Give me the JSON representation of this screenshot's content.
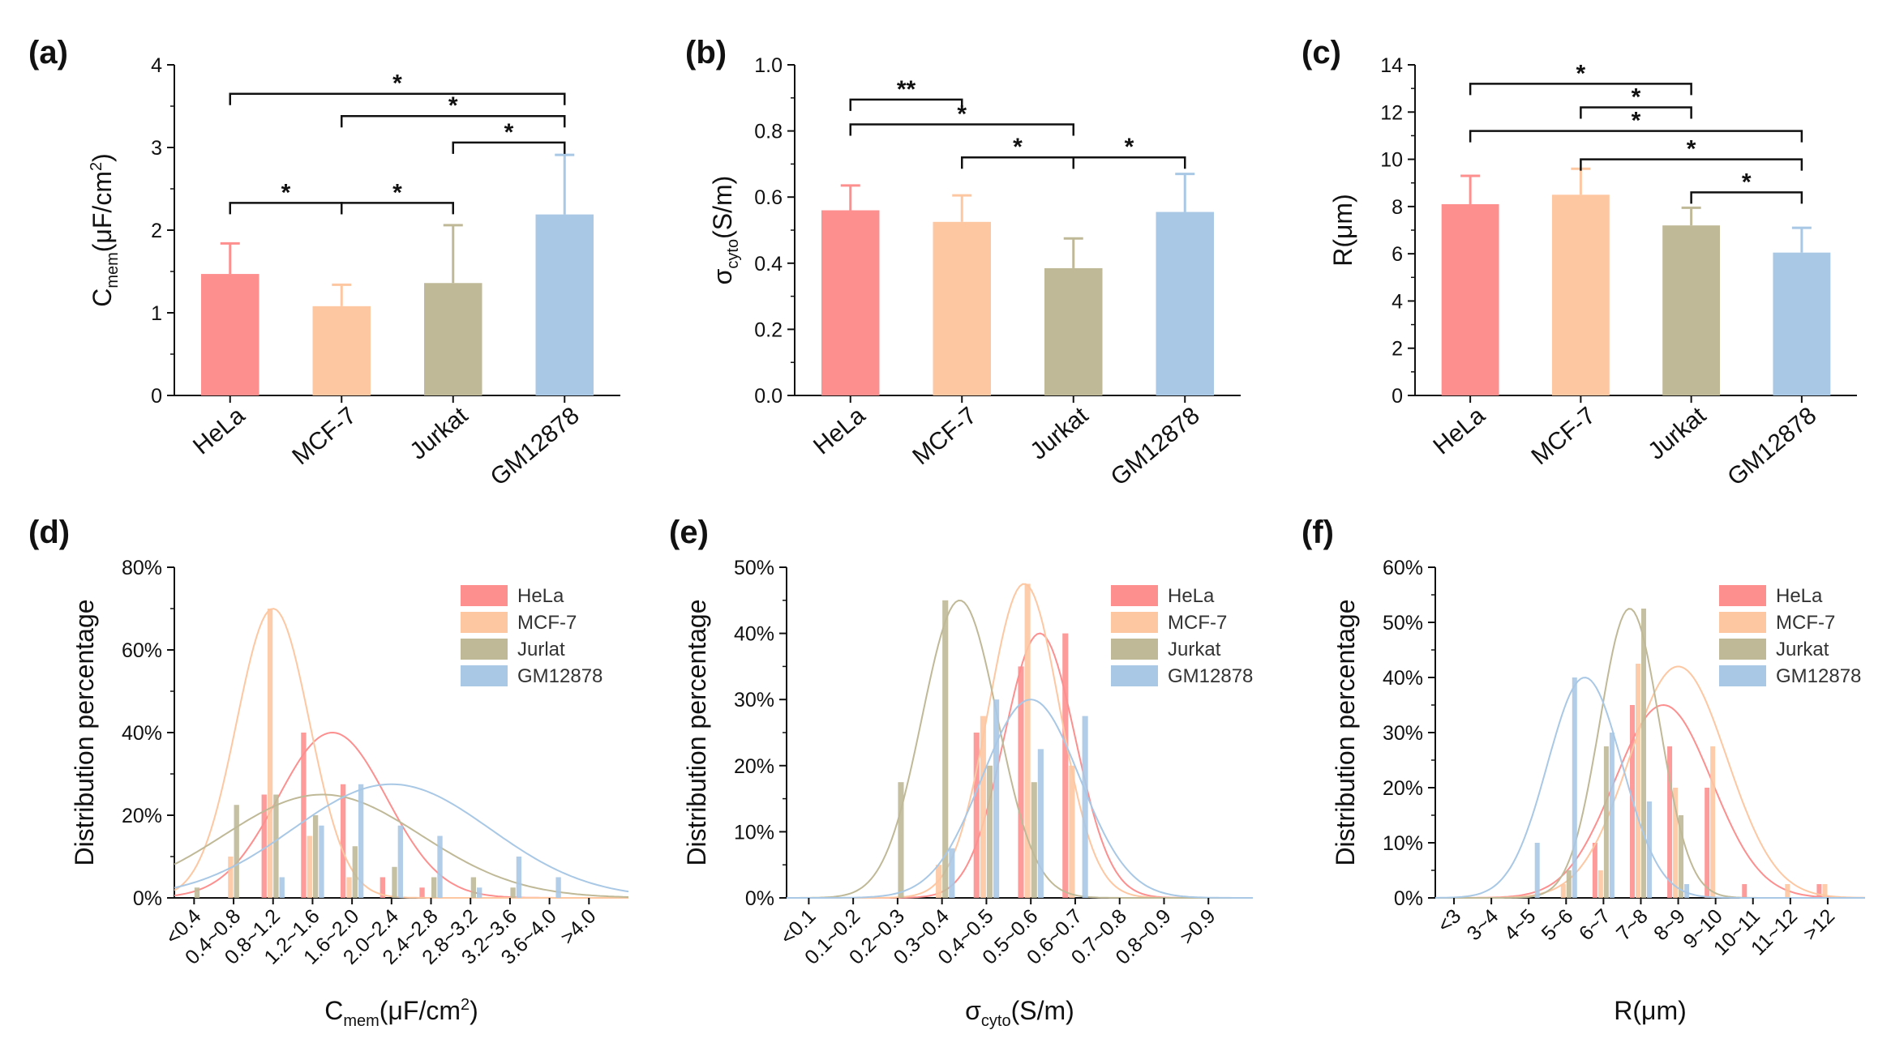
{
  "colors": {
    "HeLa": "#fd8f8f",
    "MCF-7": "#fdc7a2",
    "Jurkat": "#bfb997",
    "GM12878": "#a8c8e5",
    "axis": "#111111"
  },
  "chart_data": [
    {
      "id": "a",
      "panel_label": "(a)",
      "type": "bar",
      "categories": [
        "HeLa",
        "MCF-7",
        "Jurkat",
        "GM12878"
      ],
      "values": [
        1.47,
        1.08,
        1.36,
        2.19
      ],
      "errors": [
        0.37,
        0.26,
        0.7,
        0.72
      ],
      "ylabel": {
        "main": "C",
        "sub": "mem",
        "rest": "(μF/cm",
        "sup": "2",
        "end": ")"
      },
      "ylim": [
        0,
        4
      ],
      "yticks": [
        "0",
        "1",
        "2",
        "3",
        "4"
      ],
      "significance": [
        {
          "from": 0,
          "to": 3,
          "y": 3.65,
          "label": "*"
        },
        {
          "from": 1,
          "to": 3,
          "y": 3.38,
          "label": "*"
        },
        {
          "from": 2,
          "to": 3,
          "y": 3.06,
          "label": "*"
        },
        {
          "from": 0,
          "to": 1,
          "y": 2.33,
          "label": "*"
        },
        {
          "from": 1,
          "to": 2,
          "y": 2.33,
          "label": "*"
        }
      ]
    },
    {
      "id": "b",
      "panel_label": "(b)",
      "type": "bar",
      "categories": [
        "HeLa",
        "MCF-7",
        "Jurkat",
        "GM12878"
      ],
      "values": [
        0.56,
        0.525,
        0.385,
        0.555
      ],
      "errors": [
        0.075,
        0.08,
        0.09,
        0.115
      ],
      "ylabel": {
        "main": "σ",
        "sub": "cyto",
        "rest": "(S/m)",
        "sup": "",
        "end": ""
      },
      "ylim": [
        0,
        1
      ],
      "yticks": [
        "0.0",
        "0.2",
        "0.4",
        "0.6",
        "0.8",
        "1.0"
      ],
      "significance": [
        {
          "from": 0,
          "to": 1,
          "y": 0.895,
          "label": "**"
        },
        {
          "from": 0,
          "to": 2,
          "y": 0.82,
          "label": "*"
        },
        {
          "from": 1,
          "to": 2,
          "y": 0.72,
          "label": "*"
        },
        {
          "from": 2,
          "to": 3,
          "y": 0.72,
          "label": "*"
        }
      ]
    },
    {
      "id": "c",
      "panel_label": "(c)",
      "type": "bar",
      "categories": [
        "HeLa",
        "MCF-7",
        "Jurkat",
        "GM12878"
      ],
      "values": [
        8.1,
        8.5,
        7.2,
        6.05
      ],
      "errors": [
        1.2,
        1.1,
        0.75,
        1.05
      ],
      "ylabel": {
        "main": "R(μm)",
        "sub": "",
        "rest": "",
        "sup": "",
        "end": ""
      },
      "ylim": [
        0,
        14
      ],
      "yticks": [
        "0",
        "2",
        "4",
        "6",
        "8",
        "10",
        "12",
        "14"
      ],
      "significance": [
        {
          "from": 0,
          "to": 2,
          "y": 13.2,
          "label": "*"
        },
        {
          "from": 1,
          "to": 2,
          "y": 12.2,
          "label": "*"
        },
        {
          "from": 0,
          "to": 3,
          "y": 11.2,
          "label": "*"
        },
        {
          "from": 1,
          "to": 3,
          "y": 10.0,
          "label": "*"
        },
        {
          "from": 2,
          "to": 3,
          "y": 8.6,
          "label": "*"
        }
      ]
    },
    {
      "id": "d",
      "panel_label": "(d)",
      "type": "bar",
      "categories": [
        "<0.4",
        "0.4~0.8",
        "0.8~1.2",
        "1.2~1.6",
        "1.6~2.0",
        "2.0~2.4",
        "2.4~2.8",
        "2.8~3.2",
        "3.2~3.6",
        "3.6~4.0",
        ">4.0"
      ],
      "series": [
        {
          "name": "HeLa",
          "values": [
            0,
            0,
            25,
            40,
            27.5,
            5,
            2.5,
            0,
            0,
            0,
            0
          ],
          "fit": {
            "mean": 1.6,
            "sd": 0.55,
            "peak": 40
          }
        },
        {
          "name": "MCF-7",
          "values": [
            0,
            10,
            70,
            15,
            5,
            0,
            0,
            0,
            0,
            0,
            0
          ],
          "fit": {
            "mean": 1.0,
            "sd": 0.37,
            "peak": 70
          }
        },
        {
          "name": "Jurlat",
          "values": [
            2.5,
            22.5,
            25,
            20,
            12.5,
            7.5,
            5,
            5,
            2.5,
            0,
            0
          ],
          "fit": {
            "mean": 1.5,
            "sd": 1.0,
            "peak": 25
          }
        },
        {
          "name": "GM12878",
          "values": [
            0,
            0,
            5,
            17.5,
            27.5,
            17.5,
            15,
            2.5,
            10,
            5,
            0
          ],
          "fit": {
            "mean": 2.2,
            "sd": 1.0,
            "peak": 27.5
          }
        }
      ],
      "xlabel": {
        "main": "C",
        "sub": "mem",
        "rest": "(μF/cm",
        "sup": "2",
        "end": ")"
      },
      "ylabel": "Distribution percentage",
      "ylim": [
        0,
        80
      ],
      "yticks": [
        "0%",
        "20%",
        "40%",
        "60%",
        "80%"
      ]
    },
    {
      "id": "e",
      "panel_label": "(e)",
      "type": "bar",
      "categories": [
        "<0.1",
        "0.1~0.2",
        "0.2~0.3",
        "0.3~0.4",
        "0.4~0.5",
        "0.5~0.6",
        "0.6~0.7",
        "0.7~0.8",
        "0.8~0.9",
        ">0.9"
      ],
      "series": [
        {
          "name": "HeLa",
          "values": [
            0,
            0,
            0,
            0,
            25,
            35,
            40,
            0,
            0,
            0
          ],
          "fit": {
            "mean": 0.57,
            "sd": 0.08,
            "peak": 40
          }
        },
        {
          "name": "MCF-7",
          "values": [
            0,
            0,
            0,
            5,
            27.5,
            47.5,
            20,
            0,
            0,
            0
          ],
          "fit": {
            "mean": 0.535,
            "sd": 0.08,
            "peak": 47.5
          }
        },
        {
          "name": "Jurkat",
          "values": [
            0,
            0,
            17.5,
            45,
            20,
            17.5,
            0,
            0,
            0,
            0
          ],
          "fit": {
            "mean": 0.39,
            "sd": 0.085,
            "peak": 45
          }
        },
        {
          "name": "GM12878",
          "values": [
            0,
            0,
            0,
            7.5,
            30,
            22.5,
            27.5,
            0,
            0,
            0
          ],
          "fit": {
            "mean": 0.55,
            "sd": 0.11,
            "peak": 30
          }
        }
      ],
      "xlabel": {
        "main": "σ",
        "sub": "cyto",
        "rest": "(S/m)",
        "sup": "",
        "end": ""
      },
      "ylabel": "Distribution percentage",
      "ylim": [
        0,
        50
      ],
      "yticks": [
        "0%",
        "10%",
        "20%",
        "30%",
        "40%",
        "50%"
      ]
    },
    {
      "id": "f",
      "panel_label": "(f)",
      "type": "bar",
      "categories": [
        "<3",
        "3~4",
        "4~5",
        "5~6",
        "6~7",
        "7~8",
        "8~9",
        "9~10",
        "10~11",
        "11~12",
        ">12"
      ],
      "series": [
        {
          "name": "HeLa",
          "values": [
            0,
            0,
            0,
            0,
            10,
            35,
            27.5,
            20,
            2.5,
            0,
            2.5
          ],
          "fit": {
            "mean": 8.1,
            "sd": 1.3,
            "peak": 35
          }
        },
        {
          "name": "MCF-7",
          "values": [
            0,
            0,
            0,
            2.5,
            5,
            42.5,
            20,
            27.5,
            0,
            2.5,
            2.5
          ],
          "fit": {
            "mean": 8.5,
            "sd": 1.3,
            "peak": 42
          }
        },
        {
          "name": "Jurkat",
          "values": [
            0,
            0,
            0,
            5,
            27.5,
            52.5,
            15,
            0,
            0,
            0,
            0
          ],
          "fit": {
            "mean": 7.2,
            "sd": 0.8,
            "peak": 52.5
          }
        },
        {
          "name": "GM12878",
          "values": [
            0,
            0,
            10,
            40,
            30,
            17.5,
            2.5,
            0,
            0,
            0,
            0
          ],
          "fit": {
            "mean": 6.0,
            "sd": 1.0,
            "peak": 40
          }
        }
      ],
      "xlabel": {
        "main": "R(μm)",
        "sub": "",
        "rest": "",
        "sup": "",
        "end": ""
      },
      "ylabel": "Distribution percentage",
      "ylim": [
        0,
        60
      ],
      "yticks": [
        "0%",
        "10%",
        "20%",
        "30%",
        "40%",
        "50%",
        "60%"
      ]
    }
  ]
}
